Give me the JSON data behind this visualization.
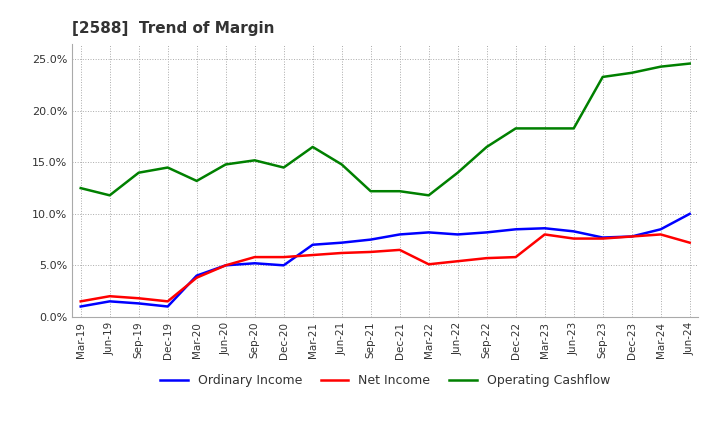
{
  "title": "[2588]  Trend of Margin",
  "ylim": [
    0.0,
    0.265
  ],
  "yticks": [
    0.0,
    0.05,
    0.1,
    0.15,
    0.2,
    0.25
  ],
  "x_labels": [
    "Mar-19",
    "Jun-19",
    "Sep-19",
    "Dec-19",
    "Mar-20",
    "Jun-20",
    "Sep-20",
    "Dec-20",
    "Mar-21",
    "Jun-21",
    "Sep-21",
    "Dec-21",
    "Mar-22",
    "Jun-22",
    "Sep-22",
    "Dec-22",
    "Mar-23",
    "Jun-23",
    "Sep-23",
    "Dec-23",
    "Mar-24",
    "Jun-24"
  ],
  "ordinary_income": [
    0.01,
    0.015,
    0.013,
    0.01,
    0.04,
    0.05,
    0.052,
    0.05,
    0.07,
    0.072,
    0.075,
    0.08,
    0.082,
    0.08,
    0.082,
    0.085,
    0.086,
    0.083,
    0.077,
    0.078,
    0.085,
    0.1
  ],
  "net_income": [
    0.015,
    0.02,
    0.018,
    0.015,
    0.038,
    0.05,
    0.058,
    0.058,
    0.06,
    0.062,
    0.063,
    0.065,
    0.051,
    0.054,
    0.057,
    0.058,
    0.08,
    0.076,
    0.076,
    0.078,
    0.08,
    0.072
  ],
  "operating_cashflow": [
    0.125,
    0.118,
    0.14,
    0.145,
    0.132,
    0.148,
    0.152,
    0.145,
    0.165,
    0.148,
    0.122,
    0.122,
    0.118,
    0.14,
    0.165,
    0.183,
    0.183,
    0.183,
    0.233,
    0.237,
    0.243,
    0.246
  ],
  "color_ordinary": "#0000ff",
  "color_net": "#ff0000",
  "color_cashflow": "#008000",
  "legend_labels": [
    "Ordinary Income",
    "Net Income",
    "Operating Cashflow"
  ],
  "background_color": "#ffffff",
  "grid_color": "#aaaaaa",
  "title_color": "#333333"
}
